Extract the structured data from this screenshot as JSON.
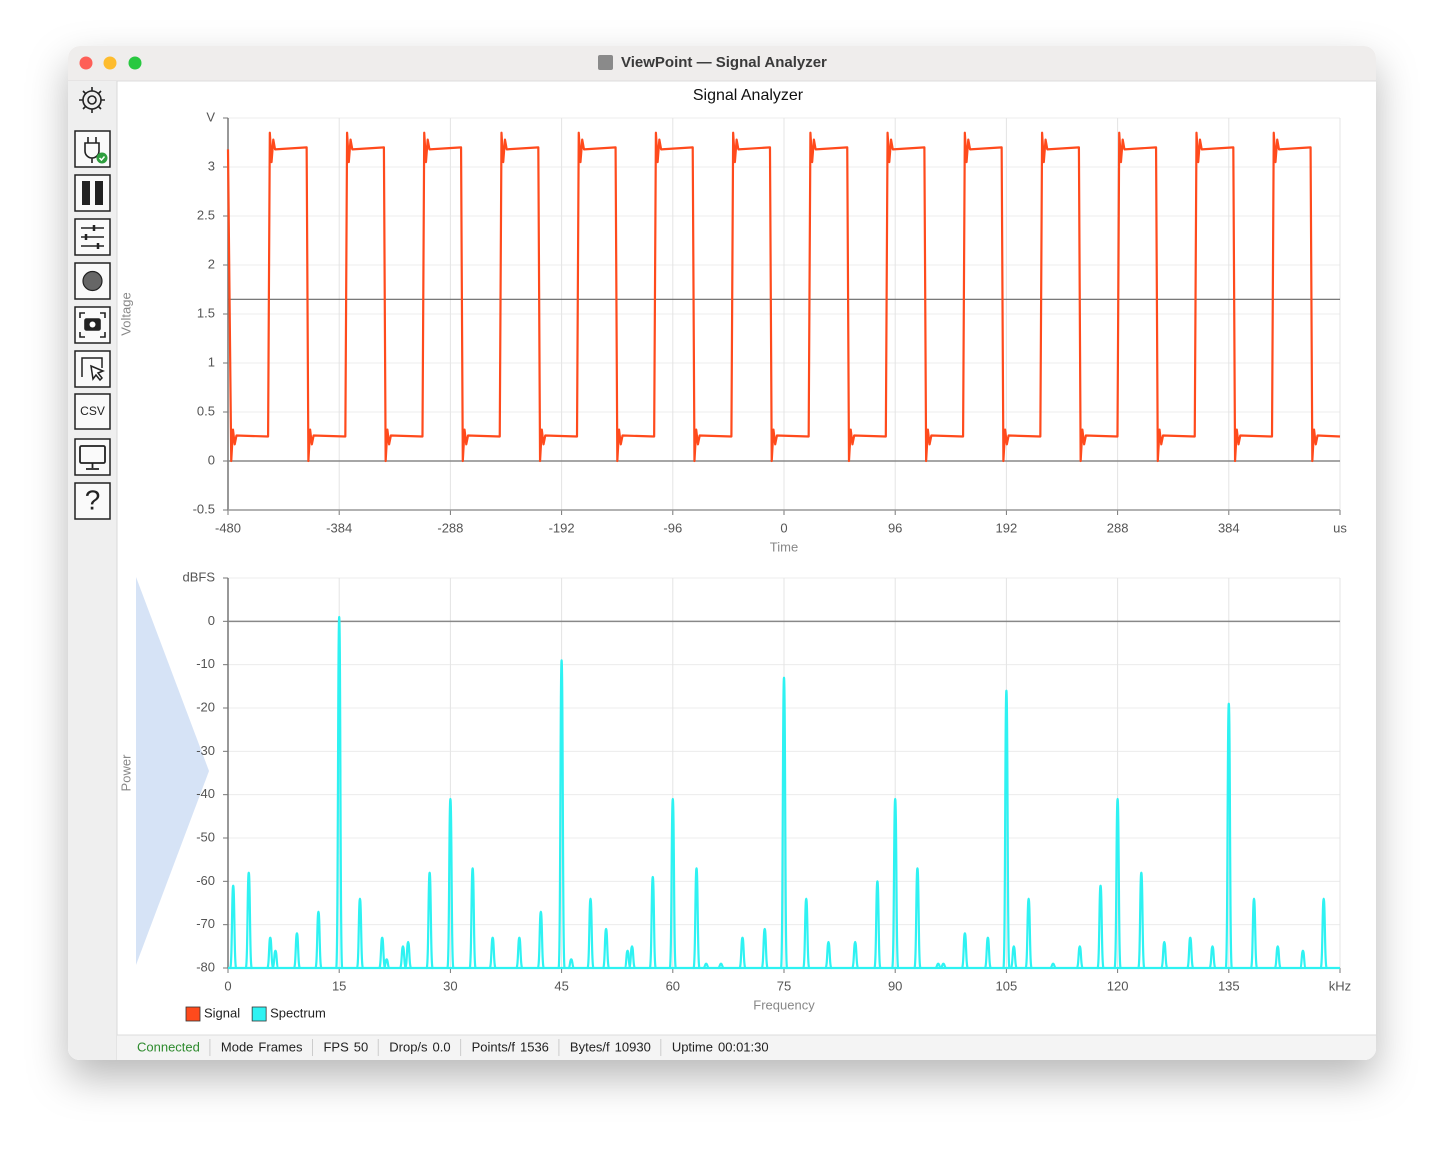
{
  "window": {
    "title": "ViewPoint — Signal Analyzer"
  },
  "toolbar": {
    "csv": "CSV",
    "help": "?"
  },
  "legend": "bottom-left",
  "chart_data": [
    {
      "type": "line",
      "title": "Signal Analyzer",
      "x_label": "Time",
      "y_label": "Voltage",
      "xlim": [
        -480,
        480
      ],
      "xticks": [
        -480,
        -384,
        -288,
        -192,
        -96,
        0,
        96,
        192,
        288,
        384,
        {
          "value": 480,
          "label": "us"
        }
      ],
      "ylim": [
        -0.5,
        3.5
      ],
      "yticks": [
        -0.5,
        0,
        0.5,
        1,
        1.5,
        2,
        2.5,
        3,
        {
          "value": 3.5,
          "label": "V"
        }
      ],
      "grid": true,
      "reference_line": 1.65,
      "series": [
        {
          "name": "Signal",
          "color": "#ff4a1c",
          "x": [
            -480,
            -477.2,
            -475.7,
            -474.2,
            -472.7,
            -445.4,
            -443.9,
            -442.4,
            -440.9,
            -439.4,
            -412.1,
            -410.6,
            -409.1,
            -407.6,
            -406.1,
            -378.7,
            -377.2,
            -375.7,
            -374.2,
            -372.7,
            -345.4,
            -343.9,
            -342.4,
            -340.9,
            -339.4,
            -312.1,
            -310.6,
            -309.1,
            -307.6,
            -306.1,
            -278.8,
            -277.3,
            -275.8,
            -274.3,
            -272.8,
            -245.4,
            -243.9,
            -242.4,
            -240.9,
            -239.4,
            -212.1,
            -210.6,
            -209.1,
            -207.6,
            -206.1,
            -178.7,
            -177.2,
            -175.7,
            -174.2,
            -172.7,
            -145.4,
            -143.9,
            -142.4,
            -140.9,
            -139.4,
            -112.1,
            -110.6,
            -109.1,
            -107.6,
            -106.1,
            -78.8,
            -77.3,
            -75.8,
            -74.3,
            -72.8,
            -45.4,
            -43.9,
            -42.4,
            -40.9,
            -39.4,
            -12.1,
            -10.6,
            -9.1,
            -7.6,
            -6.1,
            21.3,
            22.8,
            24.3,
            25.8,
            27.3,
            54.6,
            56.1,
            57.6,
            59.1,
            60.6,
            87.9,
            89.4,
            90.9,
            92.4,
            93.9,
            121.2,
            122.7,
            124.2,
            125.7,
            127.2,
            154.6,
            156.1,
            157.6,
            159.1,
            160.6,
            187.9,
            189.4,
            190.9,
            192.4,
            193.9,
            221.3,
            222.8,
            224.3,
            225.8,
            227.3,
            254.6,
            256.1,
            257.6,
            259.1,
            260.6,
            287.9,
            289.4,
            290.9,
            292.4,
            293.9,
            321.2,
            322.7,
            324.2,
            325.7,
            327.2,
            354.6,
            356.1,
            357.6,
            359.1,
            360.6,
            387.9,
            389.4,
            390.9,
            392.4,
            393.9,
            421.3,
            422.8,
            424.3,
            425.8,
            427.3,
            454.6,
            456.1,
            457.6,
            459.1,
            460.6,
            480
          ],
          "values": [
            3.18,
            0,
            0.32,
            0.17,
            0.26,
            0.25,
            3.35,
            3.05,
            3.28,
            3.18,
            3.2,
            0,
            0.32,
            0.17,
            0.26,
            0.25,
            3.35,
            3.05,
            3.28,
            3.18,
            3.2,
            0,
            0.32,
            0.17,
            0.26,
            0.25,
            3.35,
            3.05,
            3.28,
            3.18,
            3.2,
            0,
            0.32,
            0.17,
            0.26,
            0.25,
            3.35,
            3.05,
            3.28,
            3.18,
            3.2,
            0,
            0.32,
            0.17,
            0.26,
            0.25,
            3.35,
            3.05,
            3.28,
            3.18,
            3.2,
            0,
            0.32,
            0.17,
            0.26,
            0.25,
            3.35,
            3.05,
            3.28,
            3.18,
            3.2,
            0,
            0.32,
            0.17,
            0.26,
            0.25,
            3.35,
            3.05,
            3.28,
            3.18,
            3.2,
            0,
            0.32,
            0.17,
            0.26,
            0.25,
            3.35,
            3.05,
            3.28,
            3.18,
            3.2,
            0,
            0.32,
            0.17,
            0.26,
            0.25,
            3.35,
            3.05,
            3.28,
            3.18,
            3.2,
            0,
            0.32,
            0.17,
            0.26,
            0.25,
            3.35,
            3.05,
            3.28,
            3.18,
            3.2,
            0,
            0.32,
            0.17,
            0.26,
            0.25,
            3.35,
            3.05,
            3.28,
            3.18,
            3.2,
            0,
            0.32,
            0.17,
            0.26,
            0.25,
            3.35,
            3.05,
            3.28,
            3.18,
            3.2,
            0,
            0.32,
            0.17,
            0.26,
            0.25,
            3.35,
            3.05,
            3.28,
            3.18,
            3.2,
            0,
            0.32,
            0.17,
            0.26,
            0.25,
            3.35,
            3.05,
            3.28,
            3.18,
            3.2,
            0,
            0.32,
            0.17,
            0.26,
            0.25
          ]
        }
      ]
    },
    {
      "type": "spectrum",
      "x_label": "Frequency",
      "y_label": "Power",
      "xlim": [
        0,
        150
      ],
      "xticks": [
        0,
        15,
        30,
        45,
        60,
        75,
        90,
        105,
        120,
        135,
        {
          "value": 150,
          "label": "kHz"
        }
      ],
      "ylim": [
        -80,
        10
      ],
      "yticks": [
        -80,
        -70,
        -60,
        -50,
        -40,
        -30,
        -20,
        -10,
        0,
        {
          "value": 10,
          "label": "dBFS"
        }
      ],
      "grid": true,
      "series": [
        {
          "name": "Spectrum",
          "color": "#2ef2f2",
          "x": [
            0.7,
            2.8,
            5.7,
            6.4,
            9.3,
            12.2,
            15,
            17.8,
            20.8,
            21.4,
            23.6,
            24.3,
            27.2,
            30,
            33,
            35.7,
            39.3,
            42.2,
            45,
            46.3,
            48.9,
            51,
            53.9,
            54.5,
            57.3,
            60,
            63.2,
            64.5,
            66.5,
            69.4,
            72.4,
            75,
            78,
            81,
            84.6,
            87.6,
            90,
            93,
            95.8,
            96.5,
            99.4,
            102.5,
            105,
            106,
            108,
            111.3,
            114.9,
            117.7,
            120,
            123.2,
            126.3,
            129.8,
            132.8,
            135,
            138.4,
            141.6,
            145,
            147.8
          ],
          "values": [
            -61,
            -58,
            -73,
            -76,
            -72,
            -67,
            1,
            -64,
            -73,
            -78,
            -75,
            -74,
            -58,
            -41,
            -57,
            -73,
            -73,
            -67,
            -9,
            -78,
            -64,
            -71,
            -76,
            -75,
            -59,
            -41,
            -57,
            -79,
            -79,
            -73,
            -71,
            -13,
            -64,
            -74,
            -74,
            -60,
            -41,
            -57,
            -79,
            -79,
            -72,
            -73,
            -16,
            -75,
            -64,
            -79,
            -75,
            -61,
            -41,
            -58,
            -74,
            -73,
            -75,
            -19,
            -64,
            -75,
            -76,
            -64
          ]
        }
      ]
    }
  ],
  "status_bar": {
    "state": "Connected",
    "items": [
      {
        "label": "Mode",
        "value": "Frames"
      },
      {
        "label": "FPS",
        "value": "50"
      },
      {
        "label": "Drop/s",
        "value": "0.0"
      },
      {
        "label": "Points/f",
        "value": "1536"
      },
      {
        "label": "Bytes/f",
        "value": "10930"
      },
      {
        "label": "Uptime",
        "value": "00:01:30"
      }
    ]
  }
}
